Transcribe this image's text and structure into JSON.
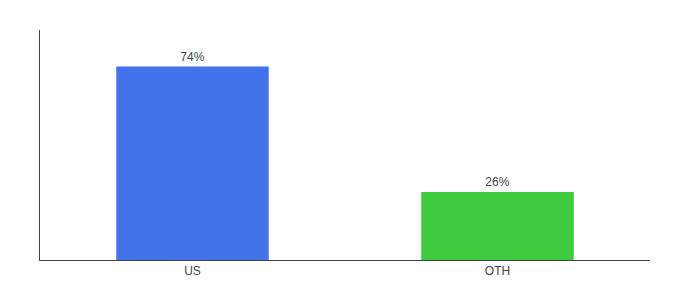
{
  "chart_data": {
    "type": "bar",
    "categories": [
      "US",
      "OTH"
    ],
    "values": [
      74,
      26
    ],
    "value_labels": [
      "74%",
      "26%"
    ],
    "colors": [
      "#4472e8",
      "#3ecc3e"
    ],
    "ylim": [
      0,
      88
    ],
    "data_labels": true,
    "tick_labels": "x",
    "grid": false
  }
}
